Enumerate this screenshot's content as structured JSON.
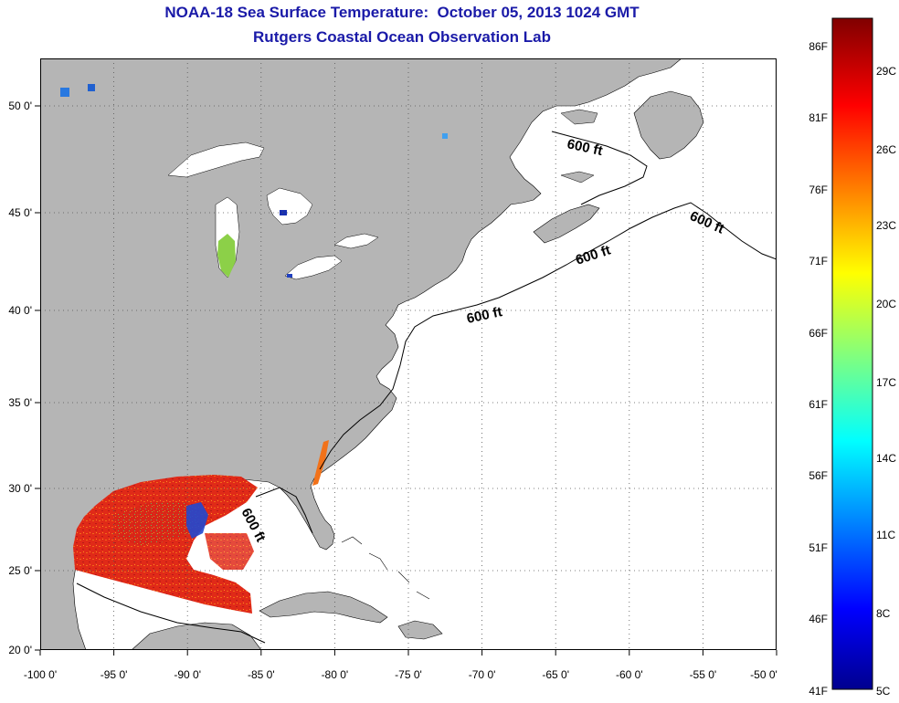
{
  "header": {
    "title_line1": "NOAA-18 Sea Surface Temperature:  October 05, 2013 1024 GMT",
    "title_line2": "Rutgers Coastal Ocean Observation Lab"
  },
  "map": {
    "type": "sea-surface-temperature map",
    "lon_range": [
      -100,
      -50
    ],
    "lat_range": [
      20,
      52
    ],
    "x_ticks": [
      "-100 0'",
      "-95 0'",
      "-90 0'",
      "-85 0'",
      "-80 0'",
      "-75 0'",
      "-70 0'",
      "-65 0'",
      "-60 0'",
      "-55 0'",
      "-50 0'"
    ],
    "y_ticks": [
      "50 0'",
      "45 0'",
      "40 0'",
      "35 0'",
      "30 0'",
      "25 0'",
      "20 0'"
    ],
    "grid": "dotted",
    "contour_labels": [
      "600 ft",
      "600 ft",
      "600 ft",
      "600 ft",
      "600 ft"
    ],
    "colors": {
      "land": "#b5b5b5",
      "ocean_nodata": "#ffffff",
      "warm_sst": "#e8281a",
      "gulf_stream": "#f2721a"
    }
  },
  "colorbar": {
    "fahrenheit_labels": [
      "86F",
      "81F",
      "76F",
      "71F",
      "66F",
      "61F",
      "56F",
      "51F",
      "46F",
      "41F"
    ],
    "celsius_labels": [
      "29C",
      "26C",
      "23C",
      "20C",
      "17C",
      "14C",
      "11C",
      "8C",
      "5C"
    ],
    "range_f": [
      41,
      88
    ],
    "range_c": [
      5,
      31
    ],
    "colormap": "jet"
  }
}
